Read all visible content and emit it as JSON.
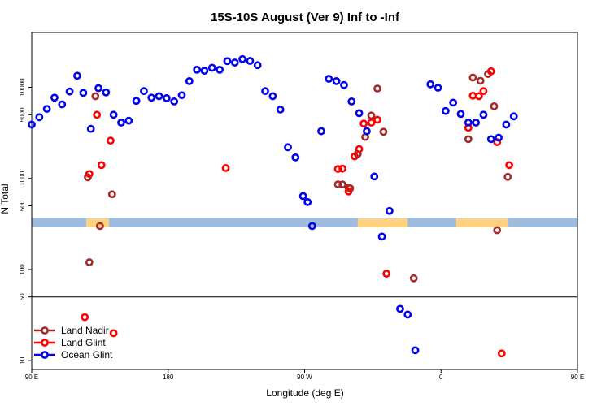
{
  "chart_data": {
    "type": "scatter",
    "title": "15S-10S August (Ver 9)   Inf to -Inf",
    "xlabel": "Longitude (deg E)",
    "ylabel": "N Total",
    "y_scale": "log",
    "xlim": [
      90,
      450
    ],
    "ylim": [
      8,
      40000
    ],
    "x_ticks": [
      {
        "value": 90,
        "label": "90 E"
      },
      {
        "value": 180,
        "label": "180"
      },
      {
        "value": 270,
        "label": "90 W"
      },
      {
        "value": 360,
        "label": "0"
      },
      {
        "value": 450,
        "label": "90 E"
      },
      {
        "value": 540,
        "label": "180"
      }
    ],
    "y_ticks": [
      {
        "value": 10,
        "label": "10"
      },
      {
        "value": 50,
        "label": "50"
      },
      {
        "value": 100,
        "label": "100"
      },
      {
        "value": 500,
        "label": "500"
      },
      {
        "value": 1000,
        "label": "1000"
      },
      {
        "value": 5000,
        "label": "5000"
      },
      {
        "value": 10000,
        "label": "10000"
      }
    ],
    "separator_y": 50,
    "legend": "bottom-left",
    "series": [
      {
        "name": "Land Nadir",
        "color": "#a52a2a",
        "points": [
          [
            127,
            1030
          ],
          [
            128,
            120
          ],
          [
            132,
            8000
          ],
          [
            135,
            300
          ],
          [
            143,
            670
          ],
          [
            292,
            860
          ],
          [
            295,
            860
          ],
          [
            299,
            790
          ],
          [
            300,
            780
          ],
          [
            305,
            1850
          ],
          [
            310,
            2850
          ],
          [
            314,
            4900
          ],
          [
            318,
            9700
          ],
          [
            322,
            3250
          ],
          [
            342,
            80
          ],
          [
            378,
            2700
          ],
          [
            381,
            12800
          ],
          [
            386,
            11800
          ],
          [
            391,
            14000
          ],
          [
            395,
            6200
          ],
          [
            397,
            270
          ],
          [
            404,
            1040
          ]
        ]
      },
      {
        "name": "Land Glint",
        "color": "#ff0000",
        "points": [
          [
            125,
            30
          ],
          [
            128,
            1120
          ],
          [
            133,
            5000
          ],
          [
            136,
            1400
          ],
          [
            142,
            2600
          ],
          [
            144,
            20
          ],
          [
            218,
            1300
          ],
          [
            292,
            1270
          ],
          [
            295,
            1280
          ],
          [
            299,
            720
          ],
          [
            303,
            1750
          ],
          [
            306,
            2100
          ],
          [
            309,
            4000
          ],
          [
            314,
            4100
          ],
          [
            318,
            4400
          ],
          [
            324,
            90
          ],
          [
            378,
            3600
          ],
          [
            381,
            8100
          ],
          [
            385,
            8000
          ],
          [
            388,
            9100
          ],
          [
            393,
            15000
          ],
          [
            397,
            2500
          ],
          [
            400,
            12
          ],
          [
            405,
            1400
          ]
        ]
      },
      {
        "name": "Ocean Glint",
        "color": "#0000ee",
        "points": [
          [
            90,
            3900
          ],
          [
            95,
            4700
          ],
          [
            100,
            5800
          ],
          [
            105,
            7700
          ],
          [
            110,
            6500
          ],
          [
            115,
            9000
          ],
          [
            120,
            13400
          ],
          [
            124,
            8700
          ],
          [
            129,
            3500
          ],
          [
            134,
            9800
          ],
          [
            139,
            8800
          ],
          [
            144,
            5000
          ],
          [
            149,
            4100
          ],
          [
            154,
            4300
          ],
          [
            159,
            7100
          ],
          [
            164,
            9100
          ],
          [
            169,
            7700
          ],
          [
            174,
            8000
          ],
          [
            179,
            7600
          ],
          [
            184,
            7000
          ],
          [
            189,
            8200
          ],
          [
            194,
            11700
          ],
          [
            199,
            15600
          ],
          [
            204,
            15200
          ],
          [
            209,
            16400
          ],
          [
            214,
            15600
          ],
          [
            219,
            19400
          ],
          [
            224,
            18700
          ],
          [
            229,
            20400
          ],
          [
            234,
            19500
          ],
          [
            239,
            17500
          ],
          [
            244,
            9100
          ],
          [
            249,
            8000
          ],
          [
            254,
            5700
          ],
          [
            259,
            2200
          ],
          [
            264,
            1700
          ],
          [
            269,
            640
          ],
          [
            272,
            550
          ],
          [
            275,
            300
          ],
          [
            281,
            3300
          ],
          [
            286,
            12400
          ],
          [
            291,
            11700
          ],
          [
            296,
            10600
          ],
          [
            301,
            7000
          ],
          [
            306,
            5200
          ],
          [
            311,
            3300
          ],
          [
            316,
            1050
          ],
          [
            321,
            230
          ],
          [
            326,
            440
          ],
          [
            333,
            37
          ],
          [
            338,
            32
          ],
          [
            343,
            13
          ],
          [
            353,
            10800
          ],
          [
            358,
            9900
          ],
          [
            363,
            5500
          ],
          [
            368,
            6800
          ],
          [
            373,
            5100
          ],
          [
            378,
            4100
          ],
          [
            383,
            4100
          ],
          [
            388,
            5000
          ],
          [
            393,
            2700
          ],
          [
            398,
            2800
          ],
          [
            403,
            3900
          ],
          [
            408,
            4800
          ]
        ]
      }
    ]
  },
  "land_color": "#ffd27f",
  "ocean_color": "#a0bcdc"
}
